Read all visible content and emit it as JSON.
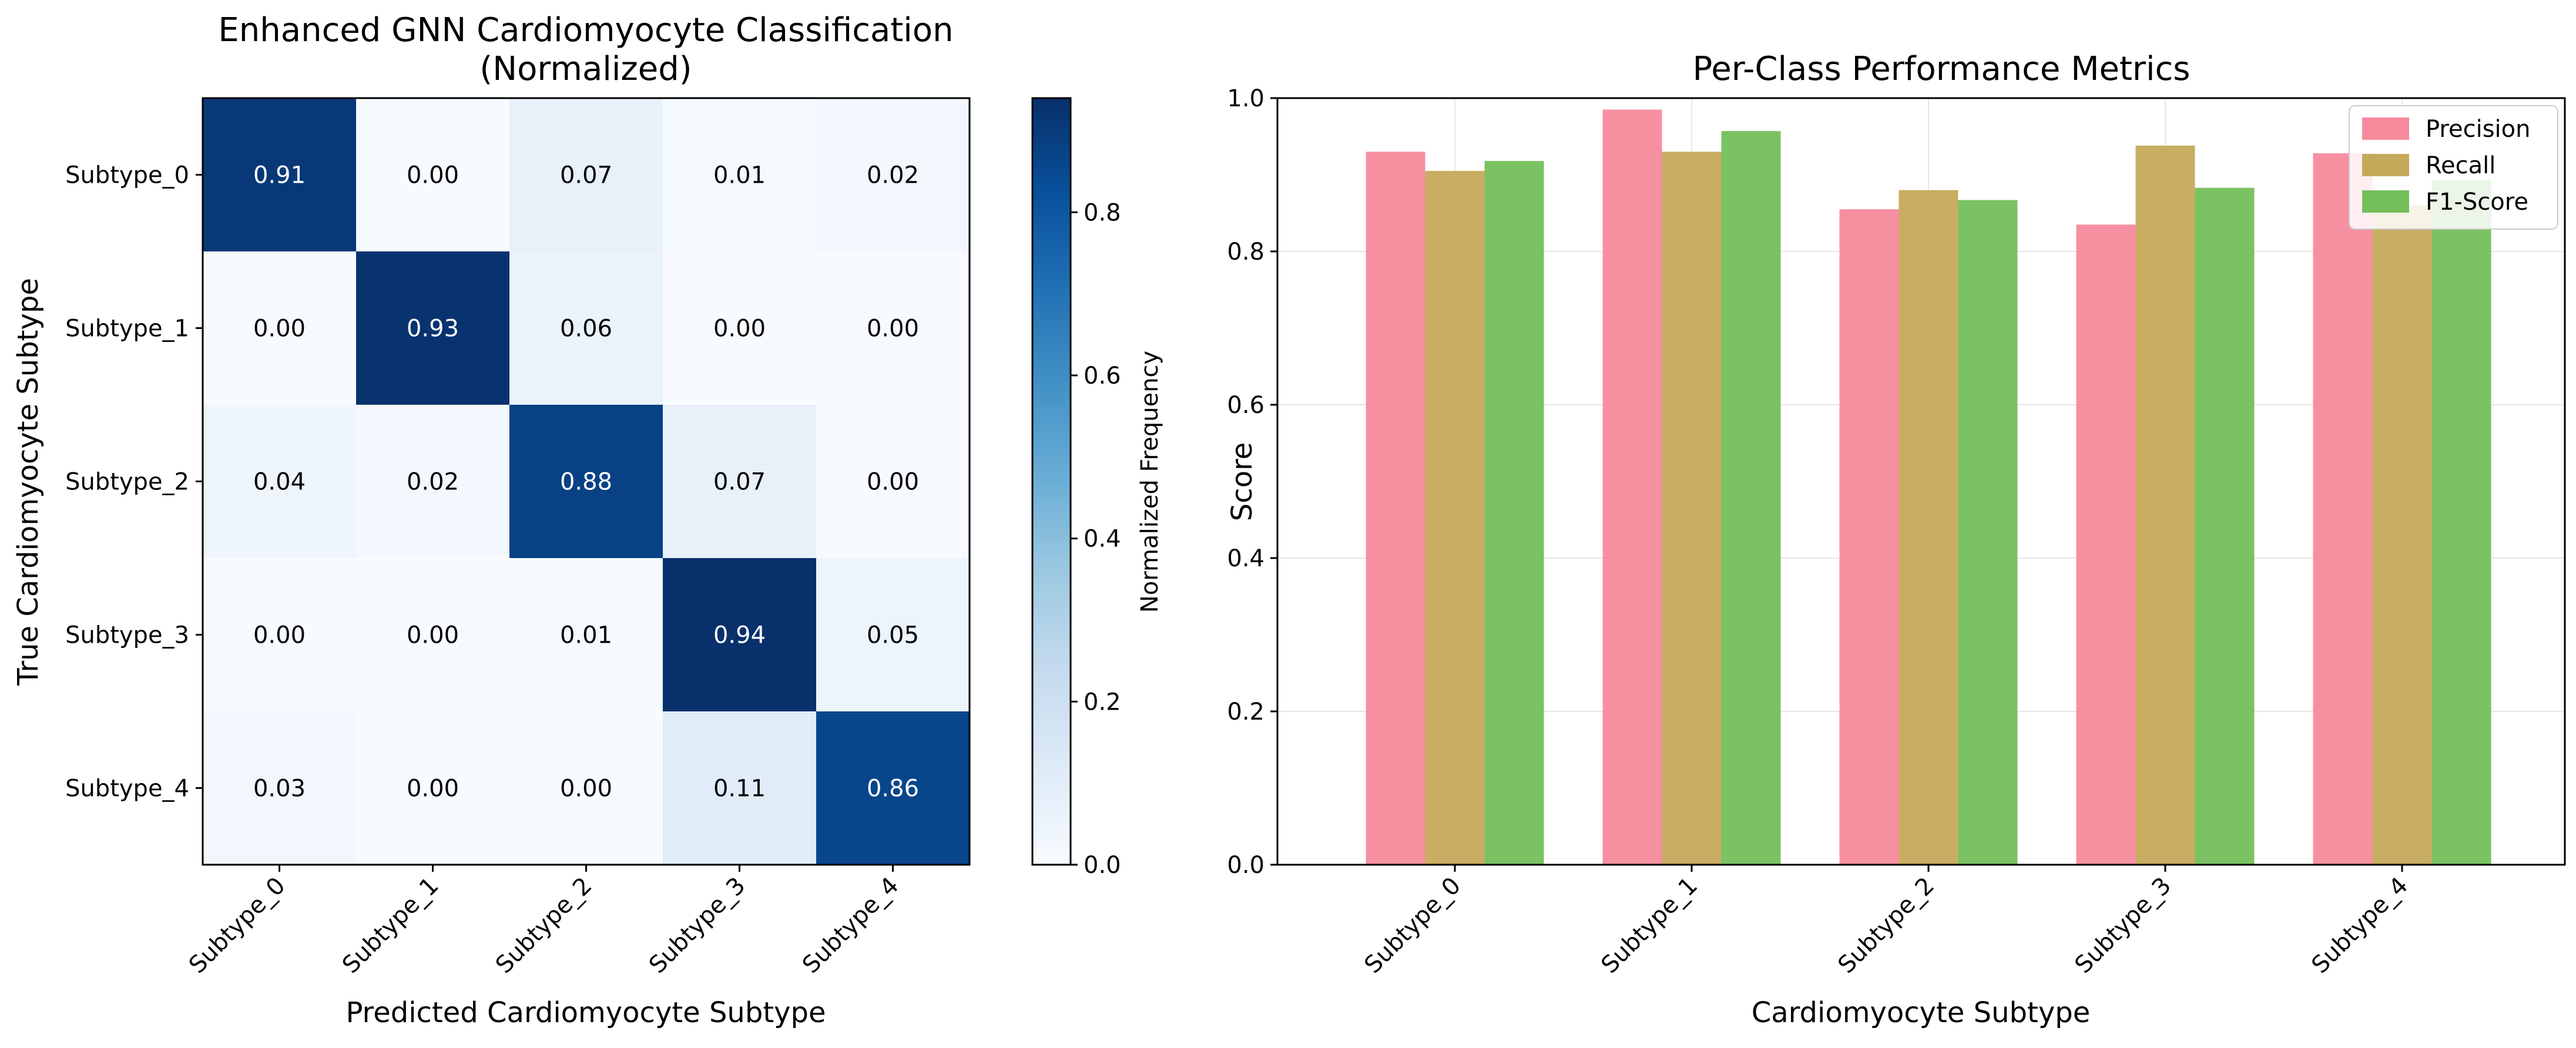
{
  "chart_data": [
    {
      "type": "heatmap",
      "title": "Enhanced GNN Cardiomyocyte Classification",
      "subtitle": "(Normalized)",
      "xlabel": "Predicted Cardiomyocyte Subtype",
      "ylabel": "True Cardiomyocyte Subtype",
      "x_categories": [
        "Subtype_0",
        "Subtype_1",
        "Subtype_2",
        "Subtype_3",
        "Subtype_4"
      ],
      "y_categories": [
        "Subtype_0",
        "Subtype_1",
        "Subtype_2",
        "Subtype_3",
        "Subtype_4"
      ],
      "values": [
        [
          0.91,
          0.0,
          0.07,
          0.01,
          0.02
        ],
        [
          0.0,
          0.93,
          0.06,
          0.0,
          0.0
        ],
        [
          0.04,
          0.02,
          0.88,
          0.07,
          0.0
        ],
        [
          0.0,
          0.0,
          0.01,
          0.94,
          0.05
        ],
        [
          0.03,
          0.0,
          0.0,
          0.11,
          0.86
        ]
      ],
      "cell_labels": [
        [
          "0.91",
          "0.00",
          "0.07",
          "0.01",
          "0.02"
        ],
        [
          "0.00",
          "0.93",
          "0.06",
          "0.00",
          "0.00"
        ],
        [
          "0.04",
          "0.02",
          "0.88",
          "0.07",
          "0.00"
        ],
        [
          "0.00",
          "0.00",
          "0.01",
          "0.94",
          "0.05"
        ],
        [
          "0.03",
          "0.00",
          "0.00",
          "0.11",
          "0.86"
        ]
      ],
      "colormap": "Blues",
      "colorbar": {
        "label": "Normalized Frequency",
        "range": [
          0,
          0.94
        ],
        "ticks": [
          0.0,
          0.2,
          0.4,
          0.6,
          0.8
        ],
        "tick_labels": [
          "0.0",
          "0.2",
          "0.4",
          "0.6",
          "0.8"
        ]
      }
    },
    {
      "type": "bar",
      "title": "Per-Class Performance Metrics",
      "xlabel": "Cardiomyocyte Subtype",
      "ylabel": "Score",
      "categories": [
        "Subtype_0",
        "Subtype_1",
        "Subtype_2",
        "Subtype_3",
        "Subtype_4"
      ],
      "ylim": [
        0,
        1.0
      ],
      "yticks": [
        0.0,
        0.2,
        0.4,
        0.6,
        0.8,
        1.0
      ],
      "ytick_labels": [
        "0.0",
        "0.2",
        "0.4",
        "0.6",
        "0.8",
        "1.0"
      ],
      "grid": true,
      "legend_position": "top-right",
      "series": [
        {
          "name": "Precision",
          "color": "#f68a9c",
          "values": [
            0.93,
            0.985,
            0.855,
            0.835,
            0.928
          ]
        },
        {
          "name": "Recall",
          "color": "#c5a95a",
          "values": [
            0.905,
            0.93,
            0.88,
            0.938,
            0.86
          ]
        },
        {
          "name": "F1-Score",
          "color": "#74bf5b",
          "values": [
            0.918,
            0.957,
            0.867,
            0.883,
            0.893
          ]
        }
      ]
    }
  ]
}
